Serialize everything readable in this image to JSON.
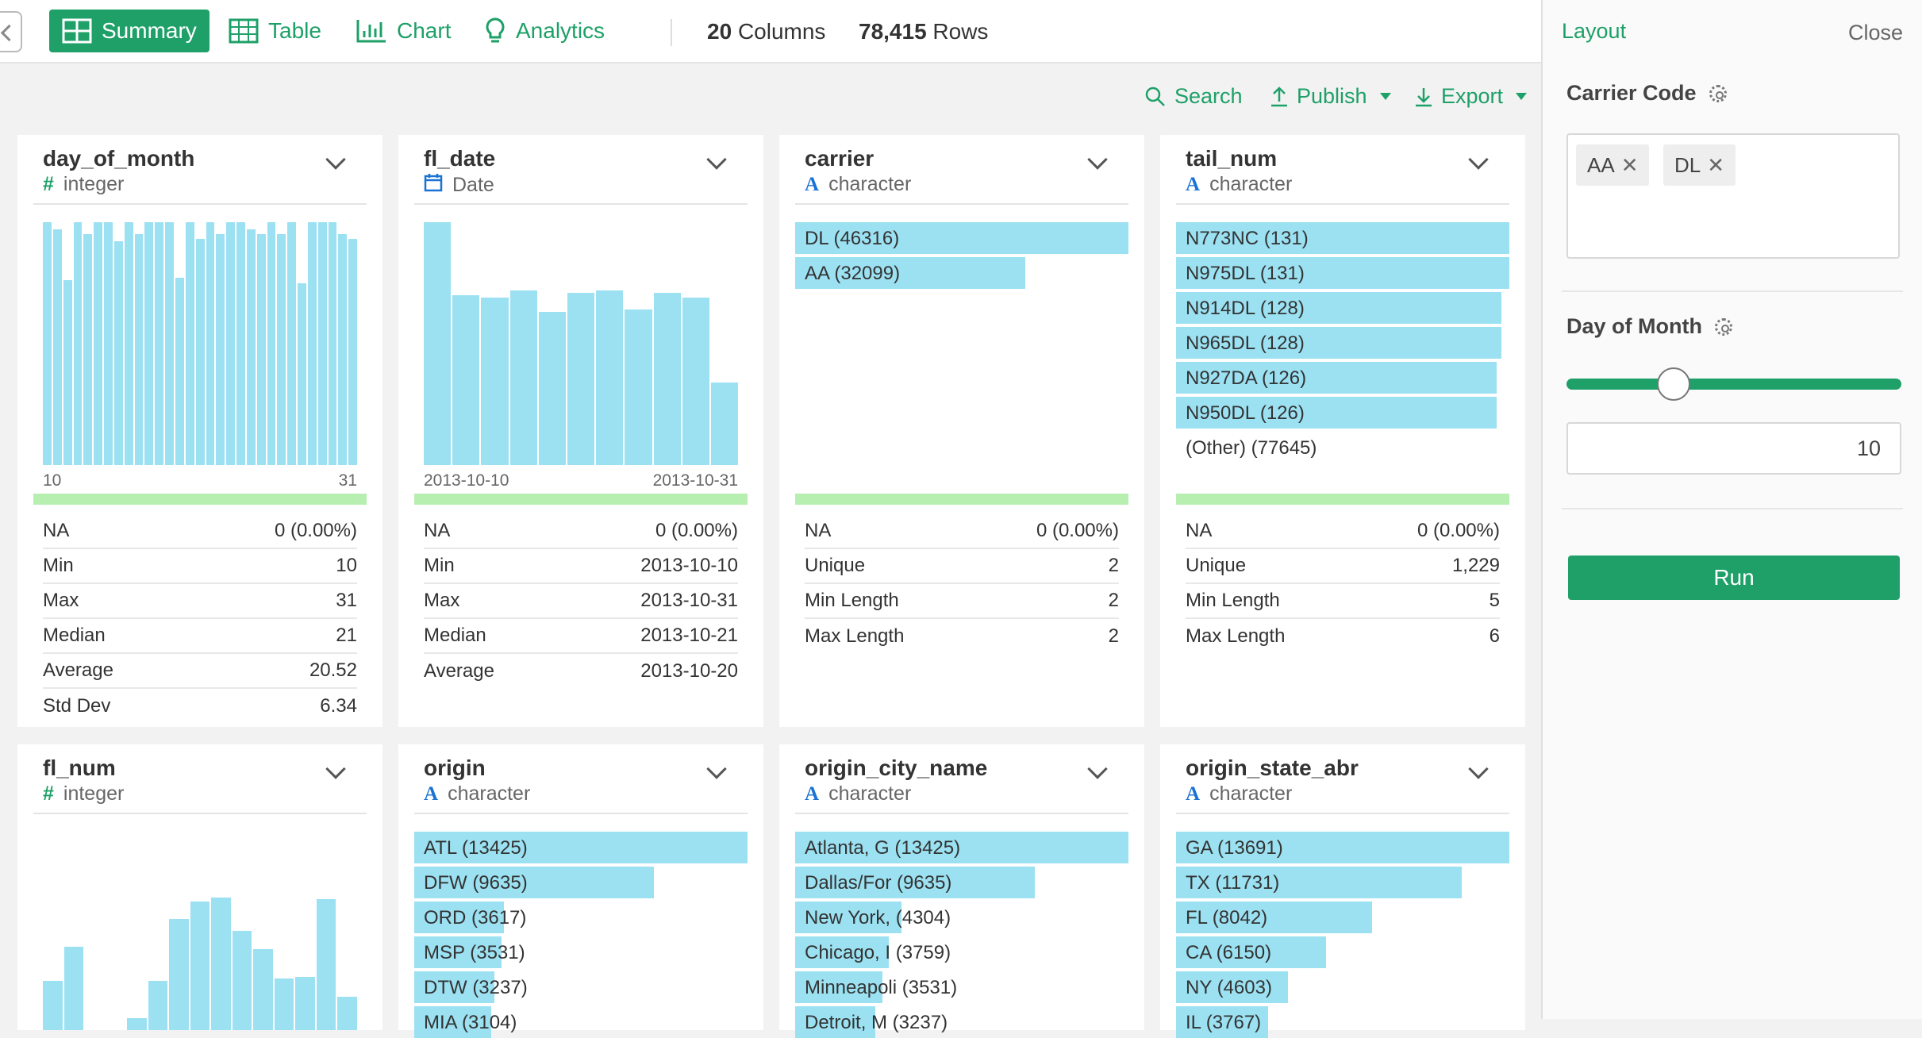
{
  "toolbar": {
    "summary": "Summary",
    "table": "Table",
    "chart": "Chart",
    "analytics": "Analytics",
    "columns_count": "20",
    "columns_label": "Columns",
    "rows_count": "78,415",
    "rows_label": "Rows"
  },
  "actions": {
    "search": "Search",
    "publish": "Publish",
    "export": "Export"
  },
  "cards": [
    {
      "name": "day_of_month",
      "type_icon": "#",
      "type": "integer",
      "histogram": [
        100,
        97,
        76,
        100,
        95,
        100,
        100,
        92,
        100,
        95,
        100,
        100,
        100,
        77,
        100,
        93,
        100,
        95,
        100,
        100,
        97,
        95,
        100,
        95,
        100,
        75,
        100,
        100,
        100,
        95,
        93
      ],
      "axis_min": "10",
      "axis_max": "31",
      "stats": [
        {
          "label": "NA",
          "value": "0 (0.00%)"
        },
        {
          "label": "Min",
          "value": "10"
        },
        {
          "label": "Max",
          "value": "31"
        },
        {
          "label": "Median",
          "value": "21"
        },
        {
          "label": "Average",
          "value": "20.52"
        },
        {
          "label": "Std Dev",
          "value": "6.34"
        }
      ]
    },
    {
      "name": "fl_date",
      "type_icon": "calendar",
      "type": "Date",
      "histogram": [
        100,
        70,
        69,
        72,
        63,
        71,
        72,
        64,
        71,
        69,
        34
      ],
      "axis_min": "2013-10-10",
      "axis_max": "2013-10-31",
      "stats": [
        {
          "label": "NA",
          "value": "0 (0.00%)"
        },
        {
          "label": "Min",
          "value": "2013-10-10"
        },
        {
          "label": "Max",
          "value": "2013-10-31"
        },
        {
          "label": "Median",
          "value": "2013-10-21"
        },
        {
          "label": "Average",
          "value": "2013-10-20"
        }
      ]
    },
    {
      "name": "carrier",
      "type_icon": "A",
      "type": "character",
      "categories": [
        {
          "label": "DL (46316)",
          "share": 1.0
        },
        {
          "label": "AA (32099)",
          "share": 0.69
        }
      ],
      "stats": [
        {
          "label": "NA",
          "value": "0 (0.00%)"
        },
        {
          "label": "Unique",
          "value": "2"
        },
        {
          "label": "Min Length",
          "value": "2"
        },
        {
          "label": "Max Length",
          "value": "2"
        }
      ]
    },
    {
      "name": "tail_num",
      "type_icon": "A",
      "type": "character",
      "categories": [
        {
          "label": "N773NC (131)",
          "share": 1.0
        },
        {
          "label": "N975DL (131)",
          "share": 1.0
        },
        {
          "label": "N914DL (128)",
          "share": 0.977
        },
        {
          "label": "N965DL (128)",
          "share": 0.977
        },
        {
          "label": "N927DA (126)",
          "share": 0.962
        },
        {
          "label": "N950DL (126)",
          "share": 0.962
        },
        {
          "label": "(Other) (77645)",
          "share": 0
        }
      ],
      "stats": [
        {
          "label": "NA",
          "value": "0 (0.00%)"
        },
        {
          "label": "Unique",
          "value": "1,229"
        },
        {
          "label": "Min Length",
          "value": "5"
        },
        {
          "label": "Max Length",
          "value": "6"
        }
      ]
    },
    {
      "name": "fl_num",
      "type_icon": "#",
      "type": "integer",
      "histogram": [
        25,
        42,
        0,
        0,
        6,
        25,
        56,
        65,
        67,
        50,
        41,
        26,
        27,
        66,
        17
      ]
    },
    {
      "name": "origin",
      "type_icon": "A",
      "type": "character",
      "categories": [
        {
          "label": "ATL (13425)",
          "share": 1.0
        },
        {
          "label": "DFW (9635)",
          "share": 0.72
        },
        {
          "label": "ORD (3617)",
          "share": 0.269
        },
        {
          "label": "MSP (3531)",
          "share": 0.263
        },
        {
          "label": "DTW (3237)",
          "share": 0.241
        },
        {
          "label": "MIA (3104)",
          "share": 0.231
        }
      ]
    },
    {
      "name": "origin_city_name",
      "type_icon": "A",
      "type": "character",
      "categories": [
        {
          "label": "Atlanta, G (13425)",
          "share": 1.0
        },
        {
          "label": "Dallas/For (9635)",
          "share": 0.72
        },
        {
          "label": "New York, (4304)",
          "share": 0.32
        },
        {
          "label": "Chicago, I (3759)",
          "share": 0.28
        },
        {
          "label": "Minneapoli (3531)",
          "share": 0.263
        },
        {
          "label": "Detroit, M (3237)",
          "share": 0.241
        }
      ]
    },
    {
      "name": "origin_state_abr",
      "type_icon": "A",
      "type": "character",
      "categories": [
        {
          "label": "GA (13691)",
          "share": 1.0
        },
        {
          "label": "TX (11731)",
          "share": 0.856
        },
        {
          "label": "FL (8042)",
          "share": 0.587
        },
        {
          "label": "CA (6150)",
          "share": 0.449
        },
        {
          "label": "NY (4603)",
          "share": 0.336
        },
        {
          "label": "IL (3767)",
          "share": 0.275
        }
      ]
    }
  ],
  "panel": {
    "title": "Layout",
    "close": "Close",
    "carrier_label": "Carrier Code",
    "chips": [
      "AA",
      "DL"
    ],
    "day_label": "Day of Month",
    "slider_fraction": 0.32,
    "day_value": "10",
    "run": "Run"
  },
  "colors": {
    "accent": "#1ea068",
    "bar": "#9be1f2",
    "na_strip": "#b7efb0",
    "type_char": "#1a73d4"
  }
}
